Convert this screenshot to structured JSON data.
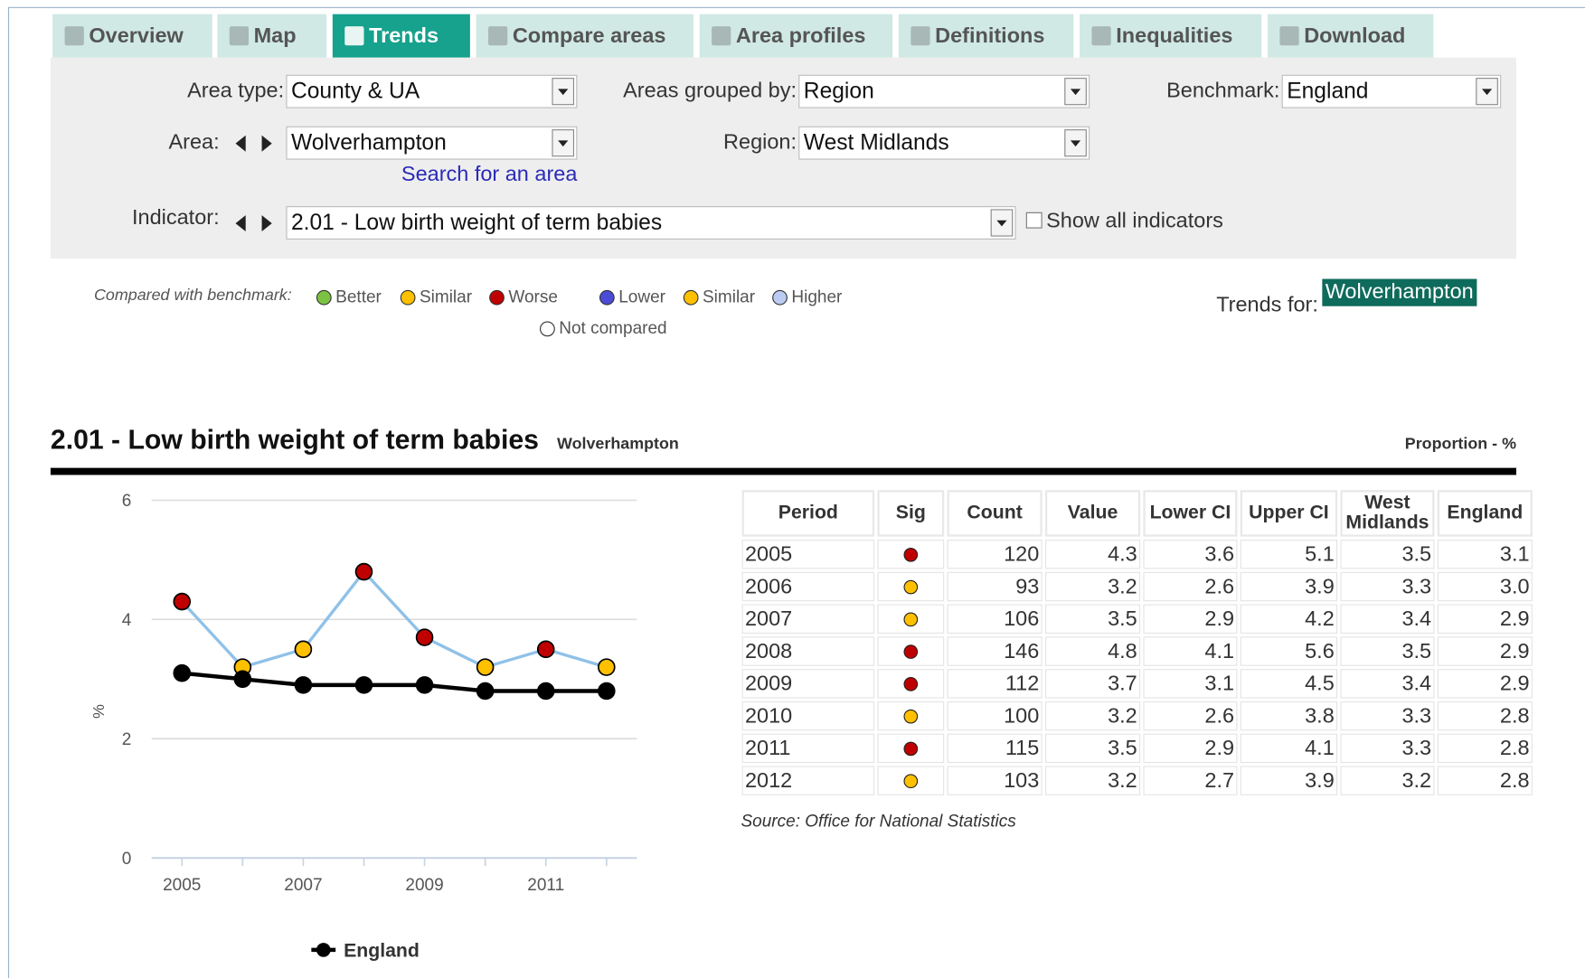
{
  "tabs": [
    "Overview",
    "Map",
    "Trends",
    "Compare areas",
    "Area profiles",
    "Definitions",
    "Inequalities",
    "Download"
  ],
  "filters": {
    "area_type": {
      "label": "Area type:",
      "value": "County & UA"
    },
    "grouped_by": {
      "label": "Areas grouped by:",
      "value": "Region"
    },
    "benchmark": {
      "label": "Benchmark:",
      "value": "England"
    },
    "area": {
      "label": "Area:",
      "value": "Wolverhampton"
    },
    "region": {
      "label": "Region:",
      "value": "West Midlands"
    },
    "indicator": {
      "label": "Indicator:",
      "value": "2.01 - Low birth weight of term babies"
    },
    "search_link": "Search for an area",
    "show_all": "Show all indicators"
  },
  "legend": {
    "title": "Compared with benchmark:",
    "items": [
      {
        "label": "Better",
        "color": "#7cc242"
      },
      {
        "label": "Similar",
        "color": "#ffc000"
      },
      {
        "label": "Worse",
        "color": "#c00000"
      },
      {
        "label": "Lower",
        "color": "#4b4bd6"
      },
      {
        "label": "Similar",
        "color": "#ffc000"
      },
      {
        "label": "Higher",
        "color": "#bccbf2"
      },
      {
        "label": "Not compared",
        "color": "#ffffff"
      }
    ]
  },
  "trends_for": {
    "label": "Trends for:",
    "area": "Wolverhampton"
  },
  "indicator_header": {
    "title": "2.01 - Low birth weight of term babies",
    "area": "Wolverhampton",
    "unit": "Proportion - %"
  },
  "chart": {
    "type": "line",
    "x": [
      2005,
      2006,
      2007,
      2008,
      2009,
      2010,
      2011,
      2012
    ],
    "xlim": [
      2004.5,
      2012.5
    ],
    "xticks": [
      2005,
      2007,
      2009,
      2011
    ],
    "ylim": [
      0,
      6
    ],
    "yticks": [
      0,
      2,
      4,
      6
    ],
    "y_label": "%",
    "grid": true,
    "series": [
      {
        "color": "#8fc1e8",
        "values": [
          4.3,
          3.2,
          3.5,
          4.8,
          3.7,
          3.2,
          3.5,
          3.2
        ],
        "marker_colors": [
          "#c00000",
          "#ffc000",
          "#ffc000",
          "#c00000",
          "#c00000",
          "#ffc000",
          "#c00000",
          "#ffc000"
        ]
      },
      {
        "name": "England",
        "color": "#000000",
        "values": [
          3.1,
          3.0,
          2.9,
          2.9,
          2.9,
          2.8,
          2.8,
          2.8
        ]
      }
    ]
  },
  "table": {
    "columns": [
      "Period",
      "Sig",
      "Count",
      "Value",
      "Lower CI",
      "Upper CI",
      "West Midlands",
      "England"
    ],
    "rows": [
      [
        "2005",
        "#c00000",
        "120",
        "4.3",
        "3.6",
        "5.1",
        "3.5",
        "3.1"
      ],
      [
        "2006",
        "#ffc000",
        "93",
        "3.2",
        "2.6",
        "3.9",
        "3.3",
        "3.0"
      ],
      [
        "2007",
        "#ffc000",
        "106",
        "3.5",
        "2.9",
        "4.2",
        "3.4",
        "2.9"
      ],
      [
        "2008",
        "#c00000",
        "146",
        "4.8",
        "4.1",
        "5.6",
        "3.5",
        "2.9"
      ],
      [
        "2009",
        "#c00000",
        "112",
        "3.7",
        "3.1",
        "4.5",
        "3.4",
        "2.9"
      ],
      [
        "2010",
        "#ffc000",
        "100",
        "3.2",
        "2.6",
        "3.8",
        "3.3",
        "2.8"
      ],
      [
        "2011",
        "#c00000",
        "115",
        "3.5",
        "2.9",
        "4.1",
        "3.3",
        "2.8"
      ],
      [
        "2012",
        "#ffc000",
        "103",
        "3.2",
        "2.7",
        "3.9",
        "3.2",
        "2.8"
      ]
    ],
    "source": "Source: Office for National Statistics"
  }
}
